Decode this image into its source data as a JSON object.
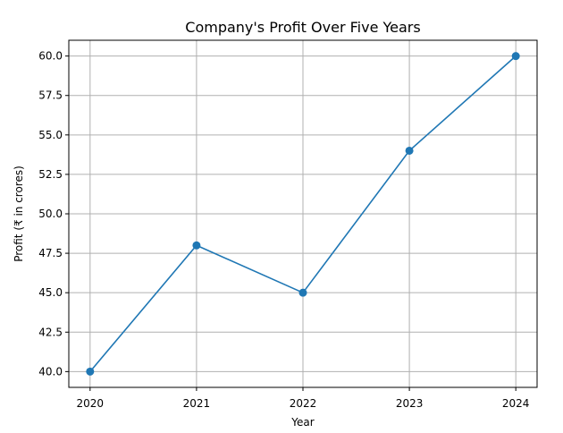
{
  "chart_data": {
    "type": "line",
    "title": "Company's Profit Over Five Years",
    "xlabel": "Year",
    "ylabel": "Profit (₹ in crores)",
    "x": [
      2020,
      2021,
      2022,
      2023,
      2024
    ],
    "x_tick_labels": [
      "2020",
      "2021",
      "2022",
      "2023",
      "2024"
    ],
    "y": [
      40,
      48,
      45,
      54,
      60
    ],
    "ylim": [
      39,
      61
    ],
    "xlim": [
      2019.8,
      2024.2
    ],
    "y_ticks": [
      40.0,
      42.5,
      45.0,
      47.5,
      50.0,
      52.5,
      55.0,
      57.5,
      60.0
    ],
    "y_tick_labels": [
      "40.0",
      "42.5",
      "45.0",
      "47.5",
      "50.0",
      "52.5",
      "55.0",
      "57.5",
      "60.0"
    ],
    "grid": true,
    "marker": "circle",
    "color": "#1f77b4"
  }
}
